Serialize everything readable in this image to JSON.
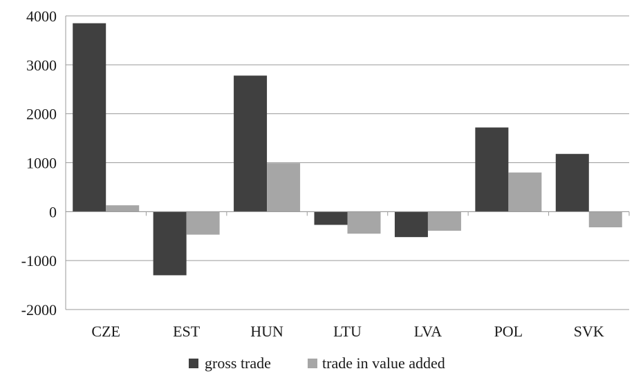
{
  "chart_data": {
    "type": "bar",
    "title": "",
    "xlabel": "",
    "ylabel": "",
    "categories": [
      "CZE",
      "EST",
      "HUN",
      "LTU",
      "LVA",
      "POL",
      "SVK"
    ],
    "series": [
      {
        "name": "gross trade",
        "color": "#404040",
        "values": [
          3850,
          -1300,
          2780,
          -270,
          -520,
          1720,
          1180
        ]
      },
      {
        "name": "trade in value added",
        "color": "#a6a6a6",
        "values": [
          130,
          -470,
          990,
          -450,
          -390,
          800,
          -320
        ]
      }
    ],
    "ylim": [
      -2000,
      4000
    ],
    "yticks": [
      "-2000",
      "-1000",
      "0",
      "1000",
      "2000",
      "3000",
      "4000"
    ],
    "grid": true,
    "legend_position": "bottom"
  }
}
